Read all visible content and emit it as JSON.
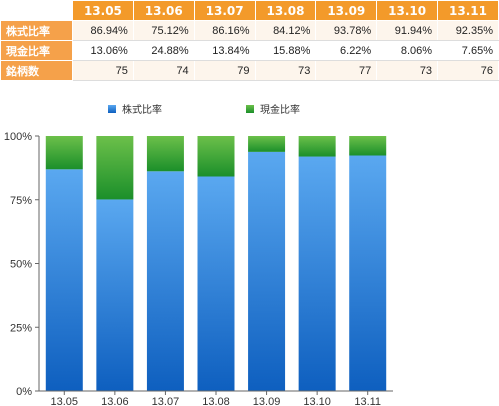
{
  "table": {
    "columns": [
      "13.05",
      "13.06",
      "13.07",
      "13.08",
      "13.09",
      "13.10",
      "13.11"
    ],
    "rows": [
      {
        "label": "株式比率",
        "values": [
          "86.94%",
          "75.12%",
          "86.16%",
          "84.12%",
          "93.78%",
          "91.94%",
          "92.35%"
        ]
      },
      {
        "label": "現金比率",
        "values": [
          "13.06%",
          "24.88%",
          "13.84%",
          "15.88%",
          "6.22%",
          "8.06%",
          "7.65%"
        ]
      },
      {
        "label": "銘柄数",
        "values": [
          "75",
          "74",
          "79",
          "73",
          "77",
          "73",
          "76"
        ]
      }
    ]
  },
  "chart_data": {
    "type": "bar",
    "stacked": true,
    "categories": [
      "13.05",
      "13.06",
      "13.07",
      "13.08",
      "13.09",
      "13.10",
      "13.11"
    ],
    "series": [
      {
        "name": "株式比率",
        "values": [
          86.94,
          75.12,
          86.16,
          84.12,
          93.78,
          91.94,
          92.35
        ],
        "color_top": "#5aa8f0",
        "color_bottom": "#0e5fbf"
      },
      {
        "name": "現金比率",
        "values": [
          13.06,
          24.88,
          13.84,
          15.88,
          6.22,
          8.06,
          7.65
        ],
        "color_top": "#6cc04a",
        "color_bottom": "#1b8f2a"
      }
    ],
    "ylim": [
      0,
      100
    ],
    "yticks": [
      "0%",
      "25%",
      "50%",
      "75%",
      "100%"
    ],
    "legend": "top",
    "title": "",
    "xlabel": "",
    "ylabel": ""
  }
}
